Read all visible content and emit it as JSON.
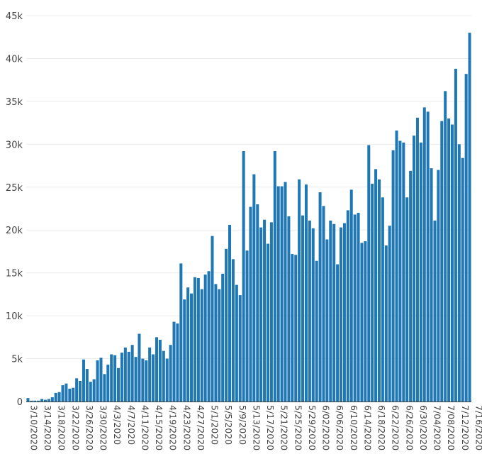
{
  "chart_data": {
    "type": "bar",
    "title": "",
    "xlabel": "",
    "ylabel": "",
    "x_start": "3/10/2020",
    "x_end": "7/16/2020",
    "ylim": [
      0,
      45000
    ],
    "yticks": [
      0,
      5000,
      10000,
      15000,
      20000,
      25000,
      30000,
      35000,
      40000,
      45000
    ],
    "ytick_labels": [
      "0",
      "5k",
      "10k",
      "15k",
      "20k",
      "25k",
      "30k",
      "35k",
      "40k",
      "45k"
    ],
    "xtick_labels": [
      "3/10/2020",
      "3/14/2020",
      "3/18/2020",
      "3/22/2020",
      "3/26/2020",
      "3/30/2020",
      "4/3/2020",
      "4/7/2020",
      "4/11/2020",
      "4/15/2020",
      "4/19/2020",
      "4/23/2020",
      "4/27/2020",
      "5/1/2020",
      "5/5/2020",
      "5/9/2020",
      "5/13/2020",
      "5/17/2020",
      "5/21/2020",
      "5/25/2020",
      "5/29/2020",
      "6/02/2020",
      "6/06/2020",
      "6/10/2020",
      "6/14/2020",
      "6/18/2020",
      "6/22/2020",
      "6/26/2020",
      "6/30/2020",
      "7/04/2020",
      "7/08/2020",
      "7/12/2020",
      "7/16/2020"
    ],
    "bar_color": "#1f77b4",
    "grid": true,
    "values": [
      400,
      100,
      100,
      100,
      300,
      200,
      300,
      500,
      1000,
      1100,
      1900,
      2100,
      1500,
      1600,
      2700,
      2400,
      4900,
      3800,
      2300,
      2600,
      4800,
      5100,
      3200,
      4300,
      5500,
      5400,
      3900,
      5700,
      6300,
      5800,
      6600,
      5200,
      7900,
      5000,
      4800,
      6300,
      5500,
      7500,
      7200,
      5900,
      5000,
      6600,
      9300,
      9100,
      16100,
      11900,
      13300,
      12600,
      14500,
      14400,
      13100,
      14800,
      15200,
      19300,
      13700,
      13100,
      14900,
      17800,
      20600,
      16600,
      13600,
      12400,
      29200,
      17600,
      22700,
      26500,
      23000,
      20300,
      21200,
      18400,
      20900,
      29200,
      25100,
      25100,
      25600,
      21600,
      17200,
      17100,
      25900,
      21700,
      25300,
      21100,
      20200,
      16400,
      24400,
      22800,
      18900,
      21100,
      20700,
      16000,
      20300,
      20800,
      22300,
      24700,
      21800,
      22000,
      18500,
      18700,
      29900,
      25400,
      27100,
      25900,
      23800,
      18200,
      20500,
      29300,
      31600,
      30400,
      30200,
      23800,
      26900,
      31000,
      33100,
      30200,
      34300,
      33800,
      27200,
      21100,
      27000,
      32700,
      36200,
      33000,
      32300,
      38800,
      30000,
      28400,
      38200,
      43000
    ]
  }
}
